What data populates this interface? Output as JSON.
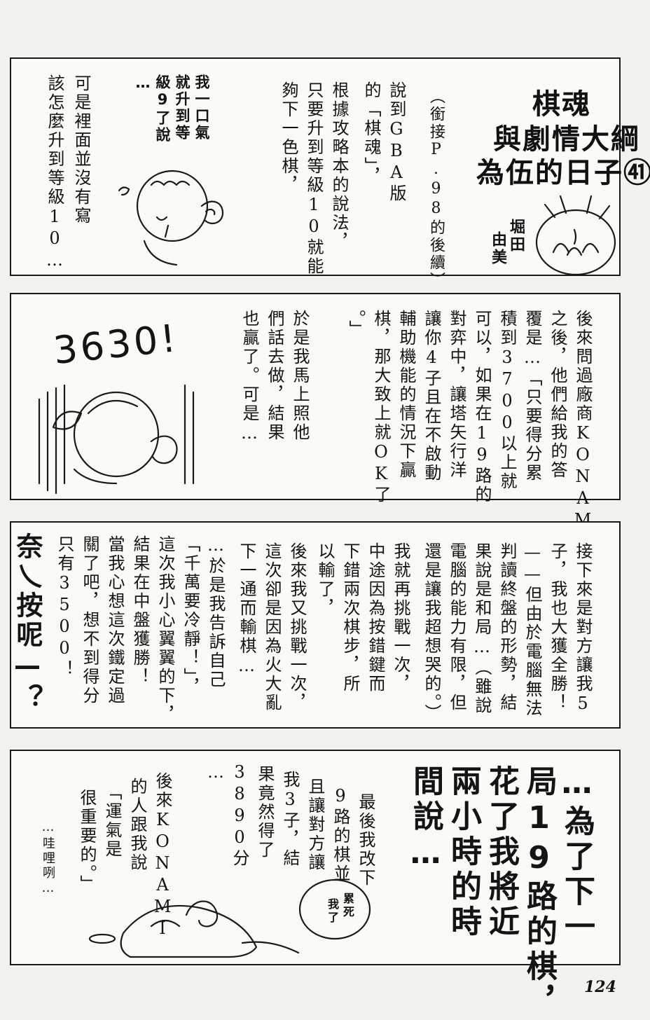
{
  "title": {
    "line1": "棋魂",
    "line2": "與劇情大綱",
    "line3": "為伍的日子㊶"
  },
  "author": {
    "col1": "堀田",
    "col2": "由美"
  },
  "panel1": {
    "columns": [
      "（銜接P.98的後續）",
      "說到GBA版",
      "的「棋魂」，",
      "根據攻略本的說法，",
      "只要升到等級10就能",
      "夠下一色棋，",
      "我一口氣",
      "就升到等",
      "級9了說",
      "…",
      "可是裡面並沒有寫",
      "該怎麼升到等級10…"
    ]
  },
  "panel2": {
    "shout": "3630!",
    "columns": [
      "後來問過廠商KONAMI",
      "之後，他們給我的答",
      "覆是…「只要得分累",
      "積到3700以上就",
      "可以，如果在19路的",
      "對弈中，讓塔矢行洋",
      "讓你4子且在不啟動",
      "輔助機能的情況下贏",
      "棋，那大致上就OK了",
      "。」",
      "於是我馬上照他",
      "們話去做，結果",
      "也贏了。可是…"
    ]
  },
  "panel3": {
    "columns": [
      "接下來是對方讓我5",
      "子，我也大獲全勝！",
      "——但由於電腦無法",
      "判讀終盤的形勢，結",
      "果說是和局…（雖說",
      "電腦的能力有限，但",
      "還是讓我超想哭的。）",
      "我就再挑戰一次，",
      "中途因為按錯鍵而",
      "下錯兩次棋步，所",
      "以輸了，",
      "後來我又挑戰一次，",
      "這次卻是因為火大亂",
      "下一通而輸棋…",
      "…於是我告訴自己",
      "「千萬要冷靜！」，",
      "這次我小心翼翼的下，",
      "結果在中盤獲勝！",
      "當我心想這次鐵定過",
      "關了吧，想不到得分",
      "只有3500！"
    ],
    "exclaim": "奈乀按呢—？"
  },
  "panel4": {
    "big_columns": [
      "…為了下一",
      "局19路的棋，",
      "花了我將近",
      "兩小時的時",
      "間說…"
    ],
    "columns": [
      "最後我改下",
      "9路的棋並",
      "且讓對方讓",
      "我3子，結",
      "果竟然得了",
      "3890分",
      "…",
      "後來KONAMI",
      "的人跟我說",
      "「運氣是",
      "很重要的。」"
    ],
    "bubble1": "累死",
    "bubble2": "我了",
    "sfx": "…哇哩咧…"
  },
  "page_number": "124"
}
